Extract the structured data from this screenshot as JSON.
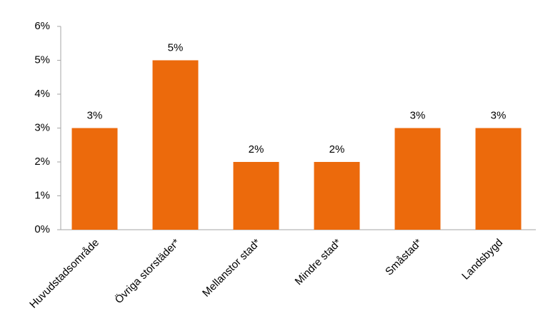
{
  "chart_data": {
    "type": "bar",
    "categories": [
      "Huvudstadsområde",
      "Övriga storstäder*",
      "Mellanstor stad*",
      "Mindre stad*",
      "Småstad*",
      "Landsbygd"
    ],
    "values": [
      3,
      5,
      2,
      2,
      3,
      3
    ],
    "value_labels": [
      "3%",
      "5%",
      "2%",
      "2%",
      "3%",
      "3%"
    ],
    "color": "#ec6a0c",
    "ylim": [
      0,
      6
    ],
    "yticks": [
      {
        "value": 0,
        "label": "0%"
      },
      {
        "value": 1,
        "label": "1%"
      },
      {
        "value": 2,
        "label": "2%"
      },
      {
        "value": 3,
        "label": "3%"
      },
      {
        "value": 4,
        "label": "4%"
      },
      {
        "value": 5,
        "label": "5%"
      },
      {
        "value": 6,
        "label": "6%"
      }
    ],
    "grid": false
  }
}
